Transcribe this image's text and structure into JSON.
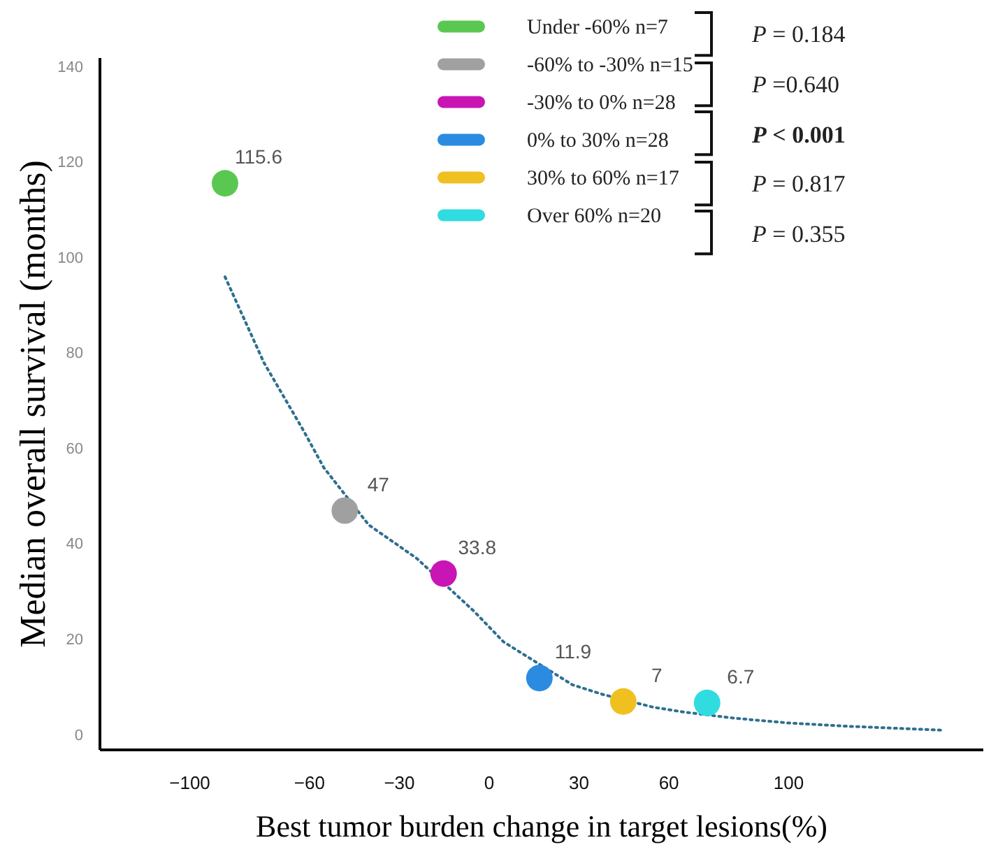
{
  "chart_data": {
    "type": "scatter",
    "xlabel": "Best tumor burden change in target lesions(%)",
    "ylabel": "Median overall survival (months)",
    "xlim": [
      -130,
      165
    ],
    "xticks": [
      -100,
      -60,
      -30,
      0,
      30,
      60,
      100
    ],
    "ylim": [
      -3,
      142
    ],
    "yticks": [
      0,
      20,
      40,
      60,
      80,
      100,
      120,
      140
    ],
    "grid": false,
    "legend": "top right",
    "marker": "circle",
    "series": [
      {
        "name": "Under -60%  n=7",
        "color": "#5ac850",
        "x": [
          -88
        ],
        "values": [
          115.6
        ],
        "value_labels": [
          "115.6"
        ]
      },
      {
        "name": "-60% to -30%  n=15",
        "color": "#a0a0a0",
        "x": [
          -48
        ],
        "values": [
          47
        ],
        "value_labels": [
          "47"
        ]
      },
      {
        "name": "-30% to  0% n=28",
        "color": "#c815b4",
        "x": [
          -15
        ],
        "values": [
          33.8
        ],
        "value_labels": [
          "33.8"
        ]
      },
      {
        "name": "0% to  30% n=28",
        "color": "#2b8be0",
        "x": [
          17
        ],
        "values": [
          11.9
        ],
        "value_labels": [
          "11.9"
        ]
      },
      {
        "name": "30% to 60%  n=17",
        "color": "#f0c020",
        "x": [
          45
        ],
        "values": [
          7
        ],
        "value_labels": [
          "7"
        ]
      },
      {
        "name": "Over 60% n=20",
        "color": "#30dce0",
        "x": [
          73
        ],
        "values": [
          6.7
        ],
        "value_labels": [
          "6.7"
        ]
      },
      {
        "type": "line",
        "color": "#2f6f8f",
        "line_style": "dotted",
        "marker": "none",
        "x": [
          -88,
          -75,
          -62,
          -55,
          -40,
          -24,
          -5,
          5,
          28,
          38,
          55,
          65,
          82,
          100,
          120,
          151
        ],
        "values": [
          96,
          78,
          64,
          56,
          44,
          37,
          26,
          19.5,
          10.5,
          8.5,
          5.8,
          4.8,
          3.5,
          2.5,
          1.8,
          1
        ]
      }
    ],
    "annotations": [
      "P = 0.184",
      "P =0.640",
      "P < 0.001",
      "P = 0.817",
      "P = 0.355"
    ]
  }
}
